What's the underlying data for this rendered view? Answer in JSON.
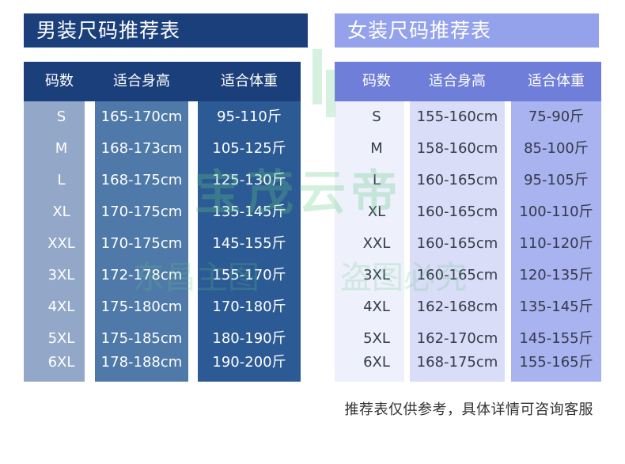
{
  "men": {
    "title": "男装尺码推荐表",
    "headers": [
      "码数",
      "适合身高",
      "适合体重"
    ],
    "rows": [
      [
        "S",
        "165-170cm",
        "95-110斤"
      ],
      [
        "M",
        "168-173cm",
        "105-125斤"
      ],
      [
        "L",
        "168-175cm",
        "125-130斤"
      ],
      [
        "XL",
        "170-175cm",
        "135-145斤"
      ],
      [
        "XXL",
        "170-175cm",
        "145-155斤"
      ],
      [
        "3XL",
        "172-178cm",
        "155-170斤"
      ],
      [
        "4XL",
        "175-180cm",
        "170-180斤"
      ],
      [
        "5XL",
        "175-185cm",
        "180-190斤"
      ],
      [
        "6XL",
        "178-188cm",
        "190-200斤"
      ]
    ]
  },
  "women": {
    "title": "女装尺码推荐表",
    "headers": [
      "码数",
      "适合身高",
      "适合体重"
    ],
    "rows": [
      [
        "S",
        "155-160cm",
        "75-90斤"
      ],
      [
        "M",
        "158-160cm",
        "85-100斤"
      ],
      [
        "L",
        "160-165cm",
        "95-105斤"
      ],
      [
        "XL",
        "160-165cm",
        "100-110斤"
      ],
      [
        "XXL",
        "160-165cm",
        "110-120斤"
      ],
      [
        "3XL",
        "160-165cm",
        "120-135斤"
      ],
      [
        "4XL",
        "162-168cm",
        "135-145斤"
      ],
      [
        "5XL",
        "162-170cm",
        "145-155斤"
      ],
      [
        "6XL",
        "168-175cm",
        "155-165斤"
      ]
    ]
  },
  "footnote": "推荐表仅供参考，具体详情可咨询客服",
  "watermark": {
    "main": "宝茂云帝",
    "sub_left": "东昌主图",
    "sub_right": "盗图必究"
  },
  "colors": {
    "men_header": "#1b3f7b",
    "men_col1": "#93a8c8",
    "men_col2": "#4f79a8",
    "men_col3": "#2c5a94",
    "women_header": "#6f7ed9",
    "women_banner": "#93a2ea",
    "women_col1": "#eef0fb",
    "women_col2": "#d9ddf7",
    "women_col3": "#a9b3ef"
  }
}
